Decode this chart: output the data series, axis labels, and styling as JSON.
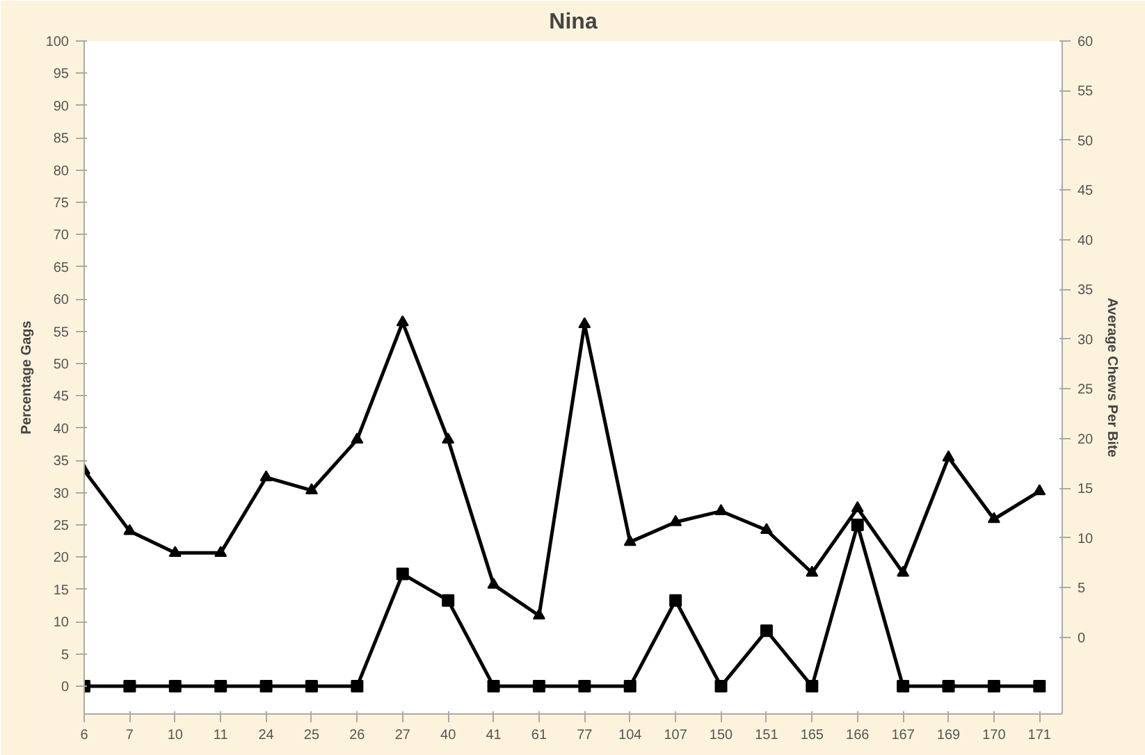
{
  "chart_data": {
    "type": "line",
    "title": "Nina",
    "ylabel": "Percentage Gags",
    "y2label": "Average Chews Per Bite",
    "categories": [
      "6",
      "7",
      "10",
      "11",
      "24",
      "25",
      "26",
      "27",
      "40",
      "41",
      "61",
      "77",
      "104",
      "107",
      "150",
      "151",
      "165",
      "166",
      "167",
      "169",
      "170",
      "171"
    ],
    "series": [
      {
        "color": "#000000",
        "marker": "square",
        "values": [
          0,
          0,
          0,
          0,
          0,
          0,
          0,
          17.4,
          13.3,
          0,
          0,
          0,
          0,
          13.3,
          0,
          8.6,
          0,
          25,
          0,
          0,
          0,
          0
        ]
      },
      {
        "color": "#000000",
        "marker": "triangle",
        "axis": "y2",
        "values": [
          16.8,
          10.7,
          8.5,
          8.5,
          16.1,
          14.8,
          19.9,
          31.7,
          19.9,
          5.3,
          2.2,
          31.5,
          9.6,
          11.6,
          12.7,
          10.8,
          6.5,
          13.0,
          6.5,
          18.1,
          11.9,
          14.7
        ]
      }
    ],
    "ylim": [
      -4.3,
      100
    ],
    "yticks": [
      0,
      5,
      10,
      15,
      20,
      25,
      30,
      35,
      40,
      45,
      50,
      55,
      60,
      65,
      70,
      75,
      80,
      85,
      90,
      95,
      100
    ],
    "y2lim": [
      -7.7,
      60
    ],
    "y2ticks": [
      0,
      5,
      10,
      15,
      20,
      25,
      30,
      35,
      40,
      45,
      50,
      55,
      60
    ],
    "grid": false,
    "line_style": "solid"
  }
}
